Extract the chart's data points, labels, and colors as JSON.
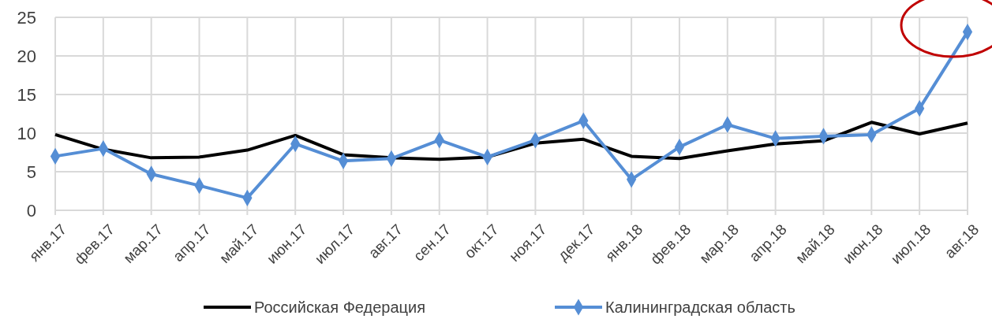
{
  "chart_data": {
    "type": "line",
    "categories": [
      "янв.17",
      "фев.17",
      "мар.17",
      "апр.17",
      "май.17",
      "июн.17",
      "июл.17",
      "авг.17",
      "сен.17",
      "окт.17",
      "ноя.17",
      "дек.17",
      "янв.18",
      "фев.18",
      "мар.18",
      "апр.18",
      "май.18",
      "июн.18",
      "июл.18",
      "авг.18"
    ],
    "series": [
      {
        "name": "Российская Федерация",
        "color": "#000000",
        "marker": "none",
        "values": [
          9.8,
          7.9,
          6.8,
          6.9,
          7.8,
          9.7,
          7.2,
          6.8,
          6.6,
          6.9,
          8.7,
          9.2,
          7.0,
          6.7,
          7.7,
          8.6,
          9.0,
          11.4,
          9.9,
          11.3
        ]
      },
      {
        "name": "Калининградская область",
        "color": "#558ed5",
        "marker": "diamond",
        "values": [
          7.0,
          8.0,
          4.7,
          3.2,
          1.6,
          8.6,
          6.4,
          6.7,
          9.1,
          6.9,
          9.1,
          11.6,
          4.0,
          8.2,
          11.1,
          9.3,
          9.6,
          9.8,
          13.2,
          23.1
        ]
      }
    ],
    "ylim": [
      0,
      25
    ],
    "yticks": [
      0,
      5,
      10,
      15,
      20,
      25
    ],
    "grid": true,
    "legend": "bottom"
  }
}
